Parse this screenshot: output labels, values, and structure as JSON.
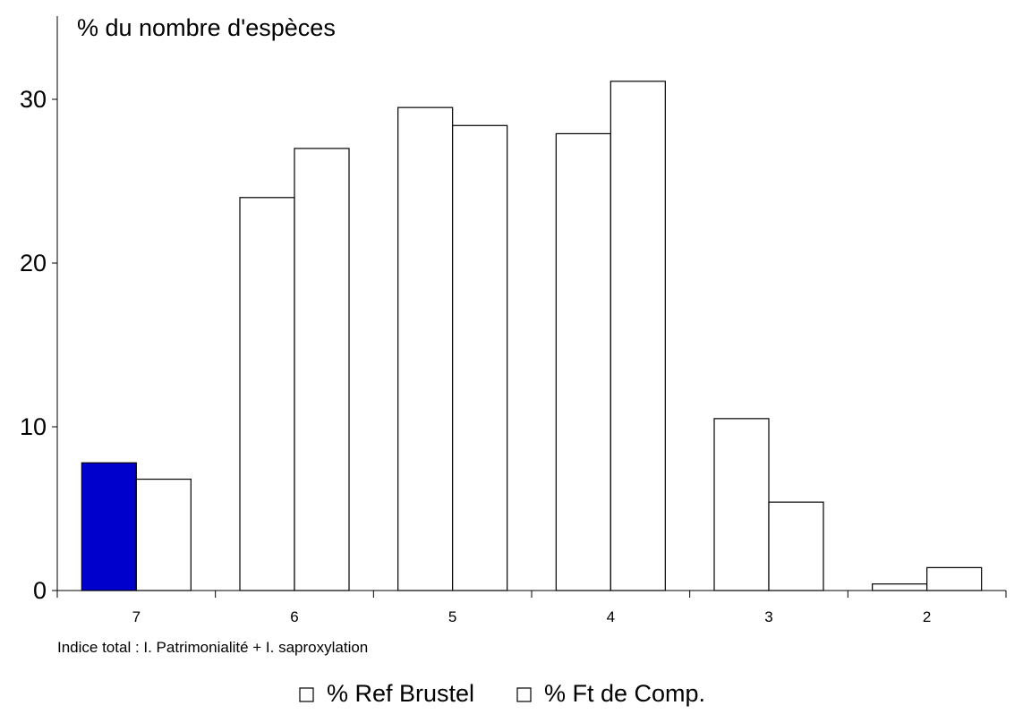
{
  "chart_data": {
    "type": "bar",
    "title": "% du nombre d'espèces",
    "xlabel": "Indice total : I. Patrimonialité + I. saproxylation",
    "ylabel": "",
    "categories": [
      "7",
      "6",
      "5",
      "4",
      "3",
      "2"
    ],
    "ylim": [
      0,
      35
    ],
    "yticks": [
      0,
      10,
      20,
      30
    ],
    "grid": false,
    "legend_position": "bottom",
    "highlight": {
      "series": 0,
      "category": "7",
      "color": "#0000CC"
    },
    "colors": {
      "bar_fill": "#FFFFFF",
      "bar_stroke": "#000000",
      "highlight": "#0000CC"
    },
    "series": [
      {
        "name": "% Ref Brustel",
        "values": [
          7.8,
          24.0,
          29.5,
          27.9,
          10.5,
          0.4
        ]
      },
      {
        "name": "% Ft de Comp.",
        "values": [
          6.8,
          27.0,
          28.4,
          31.1,
          5.4,
          1.4
        ]
      }
    ]
  }
}
